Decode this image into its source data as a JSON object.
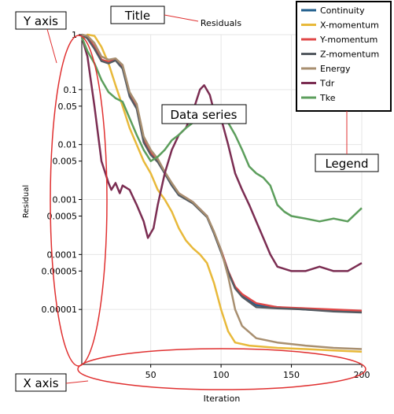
{
  "chart_data": {
    "type": "line",
    "title": "Residuals",
    "xlabel": "Iteration",
    "ylabel": "Residual",
    "xlim": [
      1,
      200
    ],
    "ylim": [
      1e-06,
      1
    ],
    "yscale": "log",
    "x_ticks": [
      50,
      100,
      150,
      200
    ],
    "y_ticks": [
      {
        "value": 1,
        "label": "1"
      },
      {
        "value": 0.1,
        "label": "0.1"
      },
      {
        "value": 0.05,
        "label": "0.05"
      },
      {
        "value": 0.01,
        "label": "0.01"
      },
      {
        "value": 0.005,
        "label": "0.005"
      },
      {
        "value": 0.001,
        "label": "0.001"
      },
      {
        "value": 0.0005,
        "label": "0.0005"
      },
      {
        "value": 0.0001,
        "label": "0.0001"
      },
      {
        "value": 5e-05,
        "label": "0.00005"
      },
      {
        "value": 1e-05,
        "label": "0.00001"
      }
    ],
    "grid": true,
    "legend_position": "top-right",
    "series": [
      {
        "name": "Continuity",
        "color": "#1f5e8c",
        "points": [
          [
            1,
            1
          ],
          [
            5,
            0.9
          ],
          [
            10,
            0.6
          ],
          [
            15,
            0.35
          ],
          [
            20,
            0.3
          ],
          [
            25,
            0.35
          ],
          [
            30,
            0.25
          ],
          [
            35,
            0.08
          ],
          [
            40,
            0.05
          ],
          [
            45,
            0.012
          ],
          [
            50,
            0.007
          ],
          [
            55,
            0.005
          ],
          [
            60,
            0.003
          ],
          [
            65,
            0.0018
          ],
          [
            70,
            0.0012
          ],
          [
            80,
            0.0009
          ],
          [
            90,
            0.0005
          ],
          [
            95,
            0.00025
          ],
          [
            100,
            0.00012
          ],
          [
            105,
            5e-05
          ],
          [
            110,
            2.5e-05
          ],
          [
            115,
            1.8e-05
          ],
          [
            125,
            1.2e-05
          ],
          [
            140,
            1.1e-05
          ],
          [
            160,
            1e-05
          ],
          [
            180,
            9.5e-06
          ],
          [
            200,
            9e-06
          ]
        ]
      },
      {
        "name": "X-momentum",
        "color": "#e8b93a",
        "points": [
          [
            1,
            0.8
          ],
          [
            5,
            1
          ],
          [
            10,
            0.95
          ],
          [
            15,
            0.6
          ],
          [
            20,
            0.3
          ],
          [
            25,
            0.12
          ],
          [
            30,
            0.05
          ],
          [
            35,
            0.02
          ],
          [
            40,
            0.01
          ],
          [
            45,
            0.005
          ],
          [
            50,
            0.003
          ],
          [
            55,
            0.0015
          ],
          [
            60,
            0.001
          ],
          [
            65,
            0.0006
          ],
          [
            70,
            0.0003
          ],
          [
            75,
            0.00018
          ],
          [
            80,
            0.00013
          ],
          [
            85,
            0.0001
          ],
          [
            90,
            7e-05
          ],
          [
            95,
            3e-05
          ],
          [
            100,
            1e-05
          ],
          [
            105,
            4e-06
          ],
          [
            110,
            2.5e-06
          ],
          [
            120,
            2.2e-06
          ],
          [
            140,
            2e-06
          ],
          [
            160,
            1.9e-06
          ],
          [
            180,
            1.8e-06
          ],
          [
            200,
            1.7e-06
          ]
        ]
      },
      {
        "name": "Y-momentum",
        "color": "#e04848",
        "points": [
          [
            1,
            1
          ],
          [
            5,
            0.9
          ],
          [
            10,
            0.6
          ],
          [
            15,
            0.35
          ],
          [
            20,
            0.32
          ],
          [
            25,
            0.36
          ],
          [
            30,
            0.26
          ],
          [
            35,
            0.08
          ],
          [
            40,
            0.05
          ],
          [
            45,
            0.012
          ],
          [
            50,
            0.007
          ],
          [
            55,
            0.005
          ],
          [
            60,
            0.0031
          ],
          [
            65,
            0.0019
          ],
          [
            70,
            0.0013
          ],
          [
            80,
            0.0009
          ],
          [
            90,
            0.0005
          ],
          [
            95,
            0.00025
          ],
          [
            100,
            0.00012
          ],
          [
            105,
            5e-05
          ],
          [
            110,
            2.6e-05
          ],
          [
            115,
            1.9e-05
          ],
          [
            125,
            1.3e-05
          ],
          [
            140,
            1.1e-05
          ],
          [
            160,
            1.05e-05
          ],
          [
            180,
            1e-05
          ],
          [
            200,
            9.5e-06
          ]
        ]
      },
      {
        "name": "Z-momentum",
        "color": "#555b62",
        "points": [
          [
            1,
            1
          ],
          [
            5,
            0.85
          ],
          [
            10,
            0.55
          ],
          [
            15,
            0.33
          ],
          [
            20,
            0.3
          ],
          [
            25,
            0.34
          ],
          [
            30,
            0.24
          ],
          [
            35,
            0.075
          ],
          [
            40,
            0.045
          ],
          [
            45,
            0.011
          ],
          [
            50,
            0.0065
          ],
          [
            55,
            0.0048
          ],
          [
            60,
            0.003
          ],
          [
            65,
            0.0018
          ],
          [
            70,
            0.0012
          ],
          [
            80,
            0.00085
          ],
          [
            90,
            0.00048
          ],
          [
            95,
            0.00024
          ],
          [
            100,
            0.00011
          ],
          [
            105,
            4.8e-05
          ],
          [
            110,
            2.4e-05
          ],
          [
            115,
            1.7e-05
          ],
          [
            125,
            1.1e-05
          ],
          [
            140,
            1.05e-05
          ],
          [
            160,
            1e-05
          ],
          [
            180,
            9.2e-06
          ],
          [
            200,
            8.8e-06
          ]
        ]
      },
      {
        "name": "Energy",
        "color": "#a88f70",
        "points": [
          [
            1,
            1
          ],
          [
            5,
            0.95
          ],
          [
            10,
            0.7
          ],
          [
            15,
            0.4
          ],
          [
            20,
            0.35
          ],
          [
            25,
            0.37
          ],
          [
            30,
            0.28
          ],
          [
            35,
            0.09
          ],
          [
            40,
            0.055
          ],
          [
            45,
            0.014
          ],
          [
            50,
            0.008
          ],
          [
            55,
            0.0055
          ],
          [
            60,
            0.0032
          ],
          [
            65,
            0.002
          ],
          [
            70,
            0.0013
          ],
          [
            80,
            0.0009
          ],
          [
            90,
            0.0005
          ],
          [
            95,
            0.00026
          ],
          [
            100,
            0.00012
          ],
          [
            105,
            4e-05
          ],
          [
            110,
            1e-05
          ],
          [
            115,
            5e-06
          ],
          [
            125,
            3e-06
          ],
          [
            140,
            2.5e-06
          ],
          [
            160,
            2.2e-06
          ],
          [
            180,
            2e-06
          ],
          [
            200,
            1.9e-06
          ]
        ]
      },
      {
        "name": "Tdr",
        "color": "#7b2d52",
        "points": [
          [
            1,
            0.9
          ],
          [
            5,
            0.4
          ],
          [
            10,
            0.05
          ],
          [
            15,
            0.005
          ],
          [
            20,
            0.002
          ],
          [
            22,
            0.0015
          ],
          [
            25,
            0.002
          ],
          [
            28,
            0.0013
          ],
          [
            30,
            0.0018
          ],
          [
            35,
            0.0015
          ],
          [
            40,
            0.0008
          ],
          [
            45,
            0.0004
          ],
          [
            48,
            0.0002
          ],
          [
            52,
            0.0003
          ],
          [
            55,
            0.0008
          ],
          [
            60,
            0.003
          ],
          [
            65,
            0.008
          ],
          [
            70,
            0.015
          ],
          [
            75,
            0.02
          ],
          [
            80,
            0.04
          ],
          [
            85,
            0.1
          ],
          [
            88,
            0.12
          ],
          [
            92,
            0.08
          ],
          [
            95,
            0.04
          ],
          [
            100,
            0.03
          ],
          [
            105,
            0.01
          ],
          [
            110,
            0.003
          ],
          [
            115,
            0.0015
          ],
          [
            120,
            0.0008
          ],
          [
            125,
            0.0004
          ],
          [
            130,
            0.0002
          ],
          [
            135,
            0.0001
          ],
          [
            140,
            6e-05
          ],
          [
            150,
            5e-05
          ],
          [
            160,
            5e-05
          ],
          [
            170,
            6e-05
          ],
          [
            180,
            5e-05
          ],
          [
            190,
            5e-05
          ],
          [
            200,
            7e-05
          ]
        ]
      },
      {
        "name": "Tke",
        "color": "#5c9e5c",
        "points": [
          [
            1,
            0.9
          ],
          [
            5,
            0.5
          ],
          [
            10,
            0.3
          ],
          [
            15,
            0.15
          ],
          [
            20,
            0.09
          ],
          [
            25,
            0.07
          ],
          [
            30,
            0.06
          ],
          [
            35,
            0.03
          ],
          [
            40,
            0.015
          ],
          [
            45,
            0.008
          ],
          [
            50,
            0.005
          ],
          [
            55,
            0.006
          ],
          [
            60,
            0.008
          ],
          [
            65,
            0.012
          ],
          [
            70,
            0.015
          ],
          [
            75,
            0.02
          ],
          [
            80,
            0.025
          ],
          [
            85,
            0.03
          ],
          [
            90,
            0.025
          ],
          [
            95,
            0.03
          ],
          [
            100,
            0.035
          ],
          [
            105,
            0.025
          ],
          [
            110,
            0.015
          ],
          [
            115,
            0.008
          ],
          [
            120,
            0.004
          ],
          [
            125,
            0.003
          ],
          [
            130,
            0.0025
          ],
          [
            135,
            0.0018
          ],
          [
            140,
            0.0008
          ],
          [
            145,
            0.0006
          ],
          [
            150,
            0.0005
          ],
          [
            160,
            0.00045
          ],
          [
            170,
            0.0004
          ],
          [
            180,
            0.00045
          ],
          [
            190,
            0.0004
          ],
          [
            200,
            0.0007
          ]
        ]
      }
    ]
  },
  "callouts": {
    "title": "Title",
    "y_axis": "Y axis",
    "x_axis": "X axis",
    "data_series": "Data series",
    "legend": "Legend"
  }
}
